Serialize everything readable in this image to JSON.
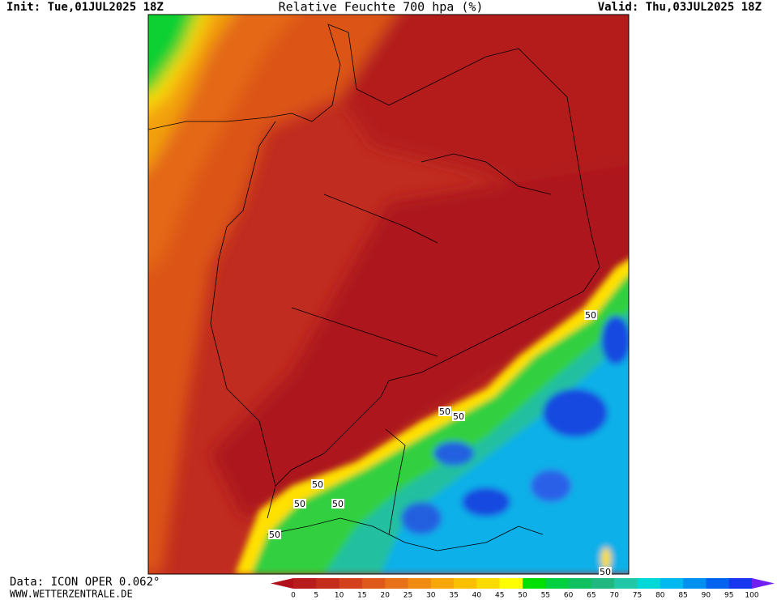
{
  "header": {
    "init": "Init: Tue,01JUL2025 18Z",
    "title": "Relative Feuchte 700 hpa (%)",
    "valid": "Valid: Thu,03JUL2025 18Z"
  },
  "contour_labels": [
    "50",
    "50",
    "50",
    "50",
    "50",
    "50",
    "50",
    "50"
  ],
  "colorbar": {
    "ticks": [
      0,
      5,
      10,
      15,
      20,
      25,
      30,
      35,
      40,
      45,
      50,
      55,
      60,
      65,
      70,
      75,
      80,
      85,
      90,
      95,
      100
    ],
    "colors": [
      "#b0101a",
      "#b81c1c",
      "#c42c1c",
      "#d2401c",
      "#de581a",
      "#e87018",
      "#f08a10",
      "#f8a608",
      "#fcc000",
      "#fcdc00",
      "#ffff00",
      "#00e000",
      "#00d040",
      "#10c060",
      "#20b880",
      "#20c8a8",
      "#00d8d8",
      "#00b8f0",
      "#0090f0",
      "#0064f0",
      "#1838f0",
      "#7020f0"
    ]
  },
  "footer": {
    "source": "Data: ICON OPER 0.062°",
    "site": "WWW.WETTERZENTRALE.DE"
  }
}
